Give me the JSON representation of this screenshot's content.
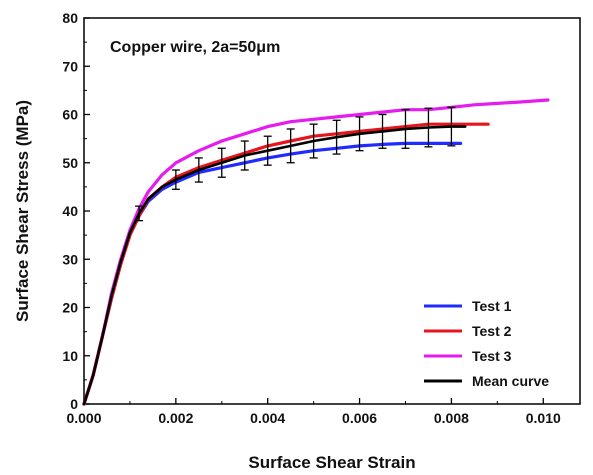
{
  "chart_data": {
    "type": "line",
    "title": "",
    "annotation": "Copper wire, 2a=50μm",
    "xlabel": "Surface Shear Strain",
    "ylabel": "Surface Shear Stress (MPa)",
    "xlim": [
      0,
      0.0108
    ],
    "ylim": [
      0,
      80
    ],
    "xticks": [
      "0.000",
      "0.002",
      "0.004",
      "0.006",
      "0.008",
      "0.010"
    ],
    "yticks": [
      "0",
      "10",
      "20",
      "30",
      "40",
      "50",
      "60",
      "70",
      "80"
    ],
    "grid": false,
    "legend_position": "bottom-right",
    "series": [
      {
        "name": "Test 1",
        "color": "#1f2bff",
        "points": [
          [
            0,
            0
          ],
          [
            0.0002,
            6
          ],
          [
            0.0004,
            14
          ],
          [
            0.0006,
            22
          ],
          [
            0.0008,
            29
          ],
          [
            0.001,
            35
          ],
          [
            0.0012,
            39
          ],
          [
            0.0014,
            42
          ],
          [
            0.0017,
            44.5
          ],
          [
            0.002,
            46
          ],
          [
            0.0025,
            48
          ],
          [
            0.003,
            49
          ],
          [
            0.0035,
            50
          ],
          [
            0.004,
            51
          ],
          [
            0.0045,
            51.8
          ],
          [
            0.005,
            52.5
          ],
          [
            0.0055,
            53
          ],
          [
            0.006,
            53.5
          ],
          [
            0.0065,
            53.8
          ],
          [
            0.007,
            54
          ],
          [
            0.0075,
            54
          ],
          [
            0.008,
            54
          ],
          [
            0.0082,
            54
          ]
        ]
      },
      {
        "name": "Test 2",
        "color": "#e8141b",
        "points": [
          [
            0,
            0
          ],
          [
            0.0002,
            6
          ],
          [
            0.0004,
            14
          ],
          [
            0.0006,
            22
          ],
          [
            0.0008,
            29
          ],
          [
            0.001,
            35
          ],
          [
            0.0012,
            39
          ],
          [
            0.0014,
            42.5
          ],
          [
            0.0017,
            45
          ],
          [
            0.002,
            47
          ],
          [
            0.0025,
            49
          ],
          [
            0.003,
            50.5
          ],
          [
            0.0035,
            52
          ],
          [
            0.004,
            53.5
          ],
          [
            0.0045,
            54.5
          ],
          [
            0.005,
            55.5
          ],
          [
            0.0055,
            56
          ],
          [
            0.006,
            56.5
          ],
          [
            0.0065,
            57
          ],
          [
            0.007,
            57.5
          ],
          [
            0.0075,
            58
          ],
          [
            0.008,
            58
          ],
          [
            0.0085,
            58
          ],
          [
            0.0088,
            58
          ]
        ]
      },
      {
        "name": "Test 3",
        "color": "#e51bf0",
        "points": [
          [
            0,
            0
          ],
          [
            0.0002,
            6
          ],
          [
            0.0004,
            14
          ],
          [
            0.0006,
            23
          ],
          [
            0.0008,
            30
          ],
          [
            0.001,
            36
          ],
          [
            0.0012,
            40.5
          ],
          [
            0.0014,
            44
          ],
          [
            0.0017,
            47.5
          ],
          [
            0.002,
            50
          ],
          [
            0.0025,
            52.5
          ],
          [
            0.003,
            54.5
          ],
          [
            0.0035,
            56
          ],
          [
            0.004,
            57.5
          ],
          [
            0.0045,
            58.5
          ],
          [
            0.005,
            59
          ],
          [
            0.0055,
            59.5
          ],
          [
            0.006,
            60
          ],
          [
            0.0065,
            60.5
          ],
          [
            0.007,
            61
          ],
          [
            0.0075,
            61
          ],
          [
            0.008,
            61.5
          ],
          [
            0.0085,
            62
          ],
          [
            0.009,
            62.3
          ],
          [
            0.0095,
            62.6
          ],
          [
            0.0101,
            63
          ]
        ]
      },
      {
        "name": "Mean curve",
        "color": "#000000",
        "points": [
          [
            0,
            0
          ],
          [
            0.0002,
            6
          ],
          [
            0.0004,
            14
          ],
          [
            0.0006,
            22.5
          ],
          [
            0.0008,
            29.5
          ],
          [
            0.001,
            35.5
          ],
          [
            0.0012,
            39.5
          ],
          [
            0.0014,
            42.5
          ],
          [
            0.0017,
            45
          ],
          [
            0.002,
            46.5
          ],
          [
            0.0025,
            48.5
          ],
          [
            0.003,
            50
          ],
          [
            0.0035,
            51.5
          ],
          [
            0.004,
            52.5
          ],
          [
            0.0045,
            53.5
          ],
          [
            0.005,
            54.5
          ],
          [
            0.0055,
            55.3
          ],
          [
            0.006,
            56
          ],
          [
            0.0065,
            56.5
          ],
          [
            0.007,
            57
          ],
          [
            0.0075,
            57.3
          ],
          [
            0.008,
            57.5
          ],
          [
            0.0083,
            57.5
          ]
        ],
        "error_bars": [
          [
            0.0012,
            39.5,
            1.5
          ],
          [
            0.002,
            46.5,
            2
          ],
          [
            0.0025,
            48.5,
            2.5
          ],
          [
            0.003,
            50,
            3
          ],
          [
            0.0035,
            51.5,
            3
          ],
          [
            0.004,
            52.5,
            3
          ],
          [
            0.0045,
            53.5,
            3.5
          ],
          [
            0.005,
            54.5,
            3.5
          ],
          [
            0.0055,
            55.3,
            3.5
          ],
          [
            0.006,
            56,
            3.5
          ],
          [
            0.0065,
            56.5,
            3.5
          ],
          [
            0.007,
            57,
            4
          ],
          [
            0.0075,
            57.3,
            4
          ],
          [
            0.008,
            57.5,
            4
          ]
        ]
      }
    ]
  }
}
